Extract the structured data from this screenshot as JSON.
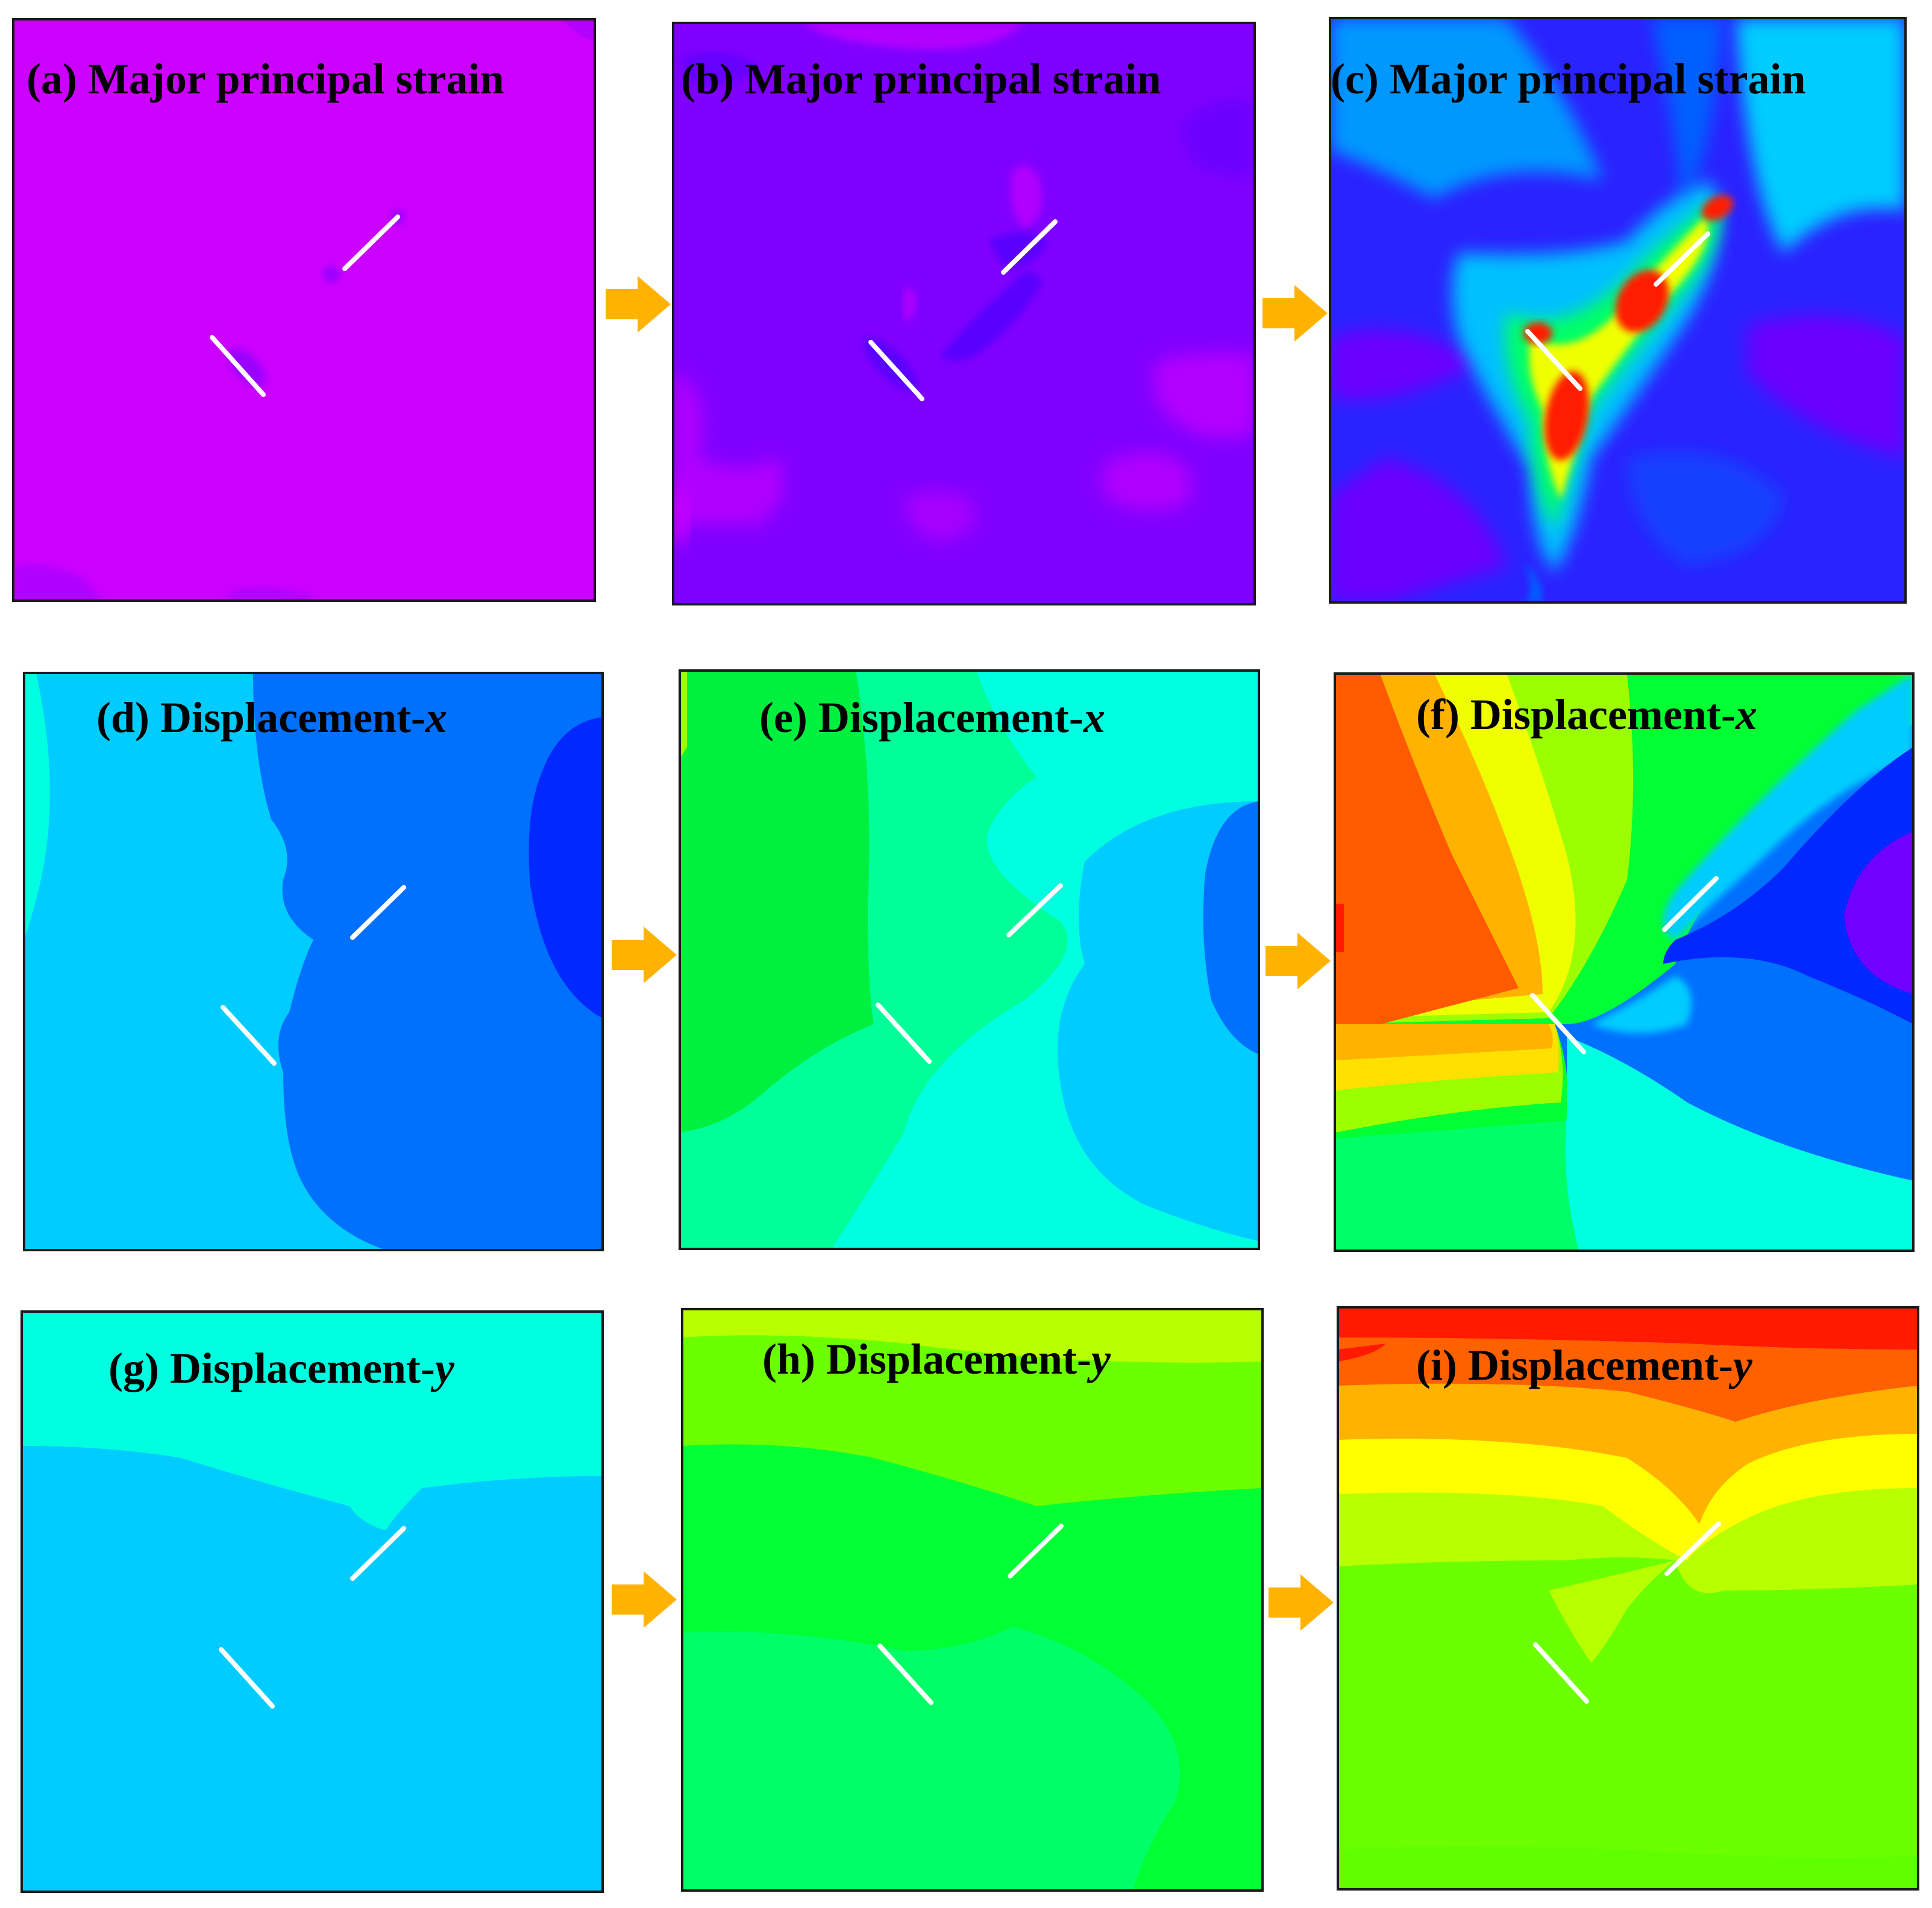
{
  "panels": [
    {
      "id": "a",
      "label": "(a) Major principal strain"
    },
    {
      "id": "b",
      "label": "(b) Major principal strain"
    },
    {
      "id": "c",
      "label": "(c) Major principal strain"
    },
    {
      "id": "d",
      "label_main": "(d) Displacement-",
      "label_var": "x"
    },
    {
      "id": "e",
      "label_main": "(e) Displacement-",
      "label_var": "x"
    },
    {
      "id": "f",
      "label_main": "(f) Displacement-",
      "label_var": "x"
    },
    {
      "id": "g",
      "label_main": "(g) Displacement-",
      "label_var": "y"
    },
    {
      "id": "h",
      "label_main": "(h) Displacement-",
      "label_var": "y"
    },
    {
      "id": "i",
      "label_main": "(i) Displacement-",
      "label_var": "y"
    }
  ],
  "colors": {
    "arrow": "#ffb300",
    "crack": "#ffffff",
    "frame": "#1a1a1a",
    "strain_low": "#cc00ff",
    "strain_mid": "#8000ff",
    "strain_high": "#ff1a00",
    "disp_blue": "#0070ff",
    "disp_cyan": "#00ccff",
    "disp_green": "#00ff33",
    "disp_red": "#ff2600"
  },
  "icons": [
    "right-arrow-icon"
  ]
}
